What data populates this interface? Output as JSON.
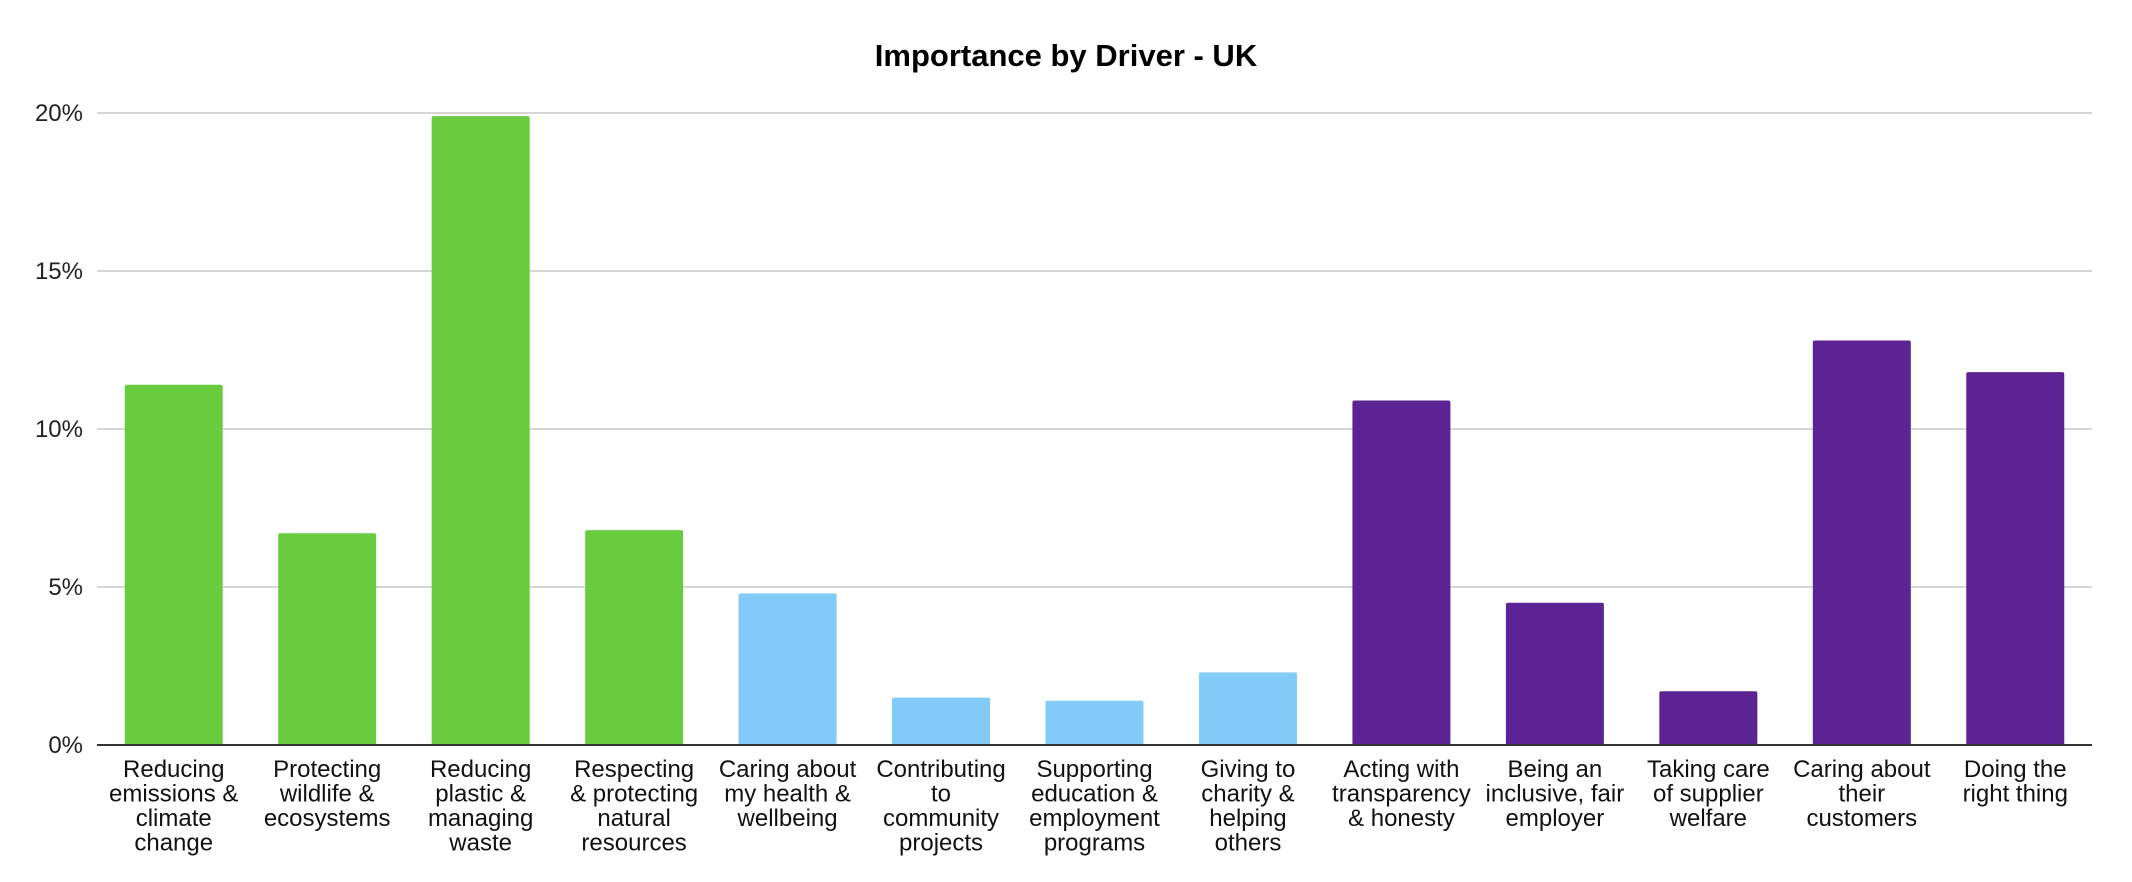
{
  "chart_data": {
    "type": "bar",
    "title": "Importance by Driver - UK",
    "xlabel": "",
    "ylabel": "",
    "ylim": [
      0,
      20
    ],
    "y_ticks": [
      {
        "value": 0,
        "label": "0%"
      },
      {
        "value": 5,
        "label": "5%"
      },
      {
        "value": 10,
        "label": "10%"
      },
      {
        "value": 15,
        "label": "15%"
      },
      {
        "value": 20,
        "label": "20%"
      }
    ],
    "grid": true,
    "legend": "none",
    "colors": {
      "environment": "#69cb3e",
      "community": "#82cbf8",
      "business": "#5b2394"
    },
    "categories": [
      {
        "lines": [
          "Reducing",
          "emissions &",
          "climate",
          "change"
        ],
        "value": 11.4,
        "group": "environment"
      },
      {
        "lines": [
          "Protecting",
          "wildlife &",
          "ecosystems"
        ],
        "value": 6.7,
        "group": "environment"
      },
      {
        "lines": [
          "Reducing",
          "plastic &",
          "managing",
          "waste"
        ],
        "value": 19.9,
        "group": "environment"
      },
      {
        "lines": [
          "Respecting",
          "& protecting",
          "natural",
          "resources"
        ],
        "value": 6.8,
        "group": "environment"
      },
      {
        "lines": [
          "Caring about",
          "my health &",
          "wellbeing"
        ],
        "value": 4.8,
        "group": "community"
      },
      {
        "lines": [
          "Contributing",
          "to",
          "community",
          "projects"
        ],
        "value": 1.5,
        "group": "community"
      },
      {
        "lines": [
          "Supporting",
          "education &",
          "employment",
          "programs"
        ],
        "value": 1.4,
        "group": "community"
      },
      {
        "lines": [
          "Giving to",
          "charity &",
          "helping",
          "others"
        ],
        "value": 2.3,
        "group": "community"
      },
      {
        "lines": [
          "Acting with",
          "transparency",
          "& honesty"
        ],
        "value": 10.9,
        "group": "business"
      },
      {
        "lines": [
          "Being an",
          "inclusive, fair",
          "employer"
        ],
        "value": 4.5,
        "group": "business"
      },
      {
        "lines": [
          "Taking care",
          "of supplier",
          "welfare"
        ],
        "value": 1.7,
        "group": "business"
      },
      {
        "lines": [
          "Caring about",
          "their",
          "customers"
        ],
        "value": 12.8,
        "group": "business"
      },
      {
        "lines": [
          "Doing the",
          "right thing"
        ],
        "value": 11.8,
        "group": "business"
      }
    ]
  }
}
